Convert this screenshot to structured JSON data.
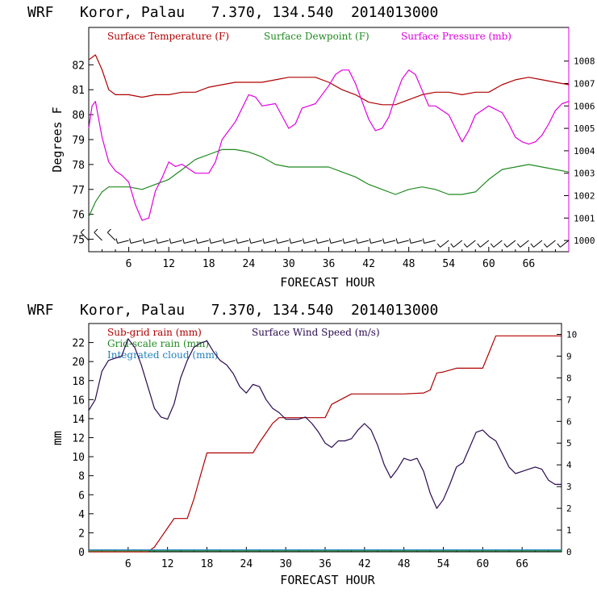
{
  "chart_data": [
    {
      "type": "line",
      "header": "WRF   Koror, Palau   7.370, 134.540  2014013000",
      "xlabel": "FORECAST HOUR",
      "ylabel": "Degrees F",
      "x_ticks": [
        "6",
        "12",
        "18",
        "24",
        "30",
        "36",
        "42",
        "48",
        "54",
        "60",
        "66"
      ],
      "xlim": [
        0,
        72
      ],
      "ylim": [
        74.5,
        83.5
      ],
      "y_ticks": [
        "75",
        "76",
        "77",
        "78",
        "79",
        "80",
        "81",
        "82"
      ],
      "ylim_right": [
        999.5,
        1009.5
      ],
      "y_ticks_right": [
        "1000",
        "1001",
        "1002",
        "1003",
        "1004",
        "1005",
        "1006",
        "1007",
        "1008"
      ],
      "colors": {
        "temperature": "#b00000",
        "dewpoint": "#1f8a1f",
        "pressure": "#e000e0",
        "wind_barbs": "#000000",
        "axes": "#000000"
      },
      "legend": [
        "Surface Temperature (F)",
        "Surface Dewpoint (F)",
        "Surface Pressure (mb)"
      ],
      "series": [
        {
          "name": "Surface Temperature (F)",
          "axis": "left",
          "x": [
            0,
            1,
            2,
            3,
            4,
            6,
            8,
            10,
            12,
            14,
            16,
            18,
            20,
            22,
            24,
            26,
            28,
            30,
            32,
            34,
            36,
            38,
            40,
            42,
            44,
            46,
            48,
            50,
            52,
            54,
            56,
            58,
            60,
            62,
            64,
            66,
            68,
            70,
            72
          ],
          "values": [
            82.2,
            82.4,
            81.8,
            81.0,
            80.8,
            80.8,
            80.7,
            80.8,
            80.8,
            80.9,
            80.9,
            81.1,
            81.2,
            81.3,
            81.3,
            81.3,
            81.4,
            81.5,
            81.5,
            81.5,
            81.3,
            81.0,
            80.8,
            80.5,
            80.4,
            80.4,
            80.6,
            80.8,
            80.9,
            80.9,
            80.8,
            80.9,
            80.9,
            81.2,
            81.4,
            81.5,
            81.4,
            81.3,
            81.2
          ]
        },
        {
          "name": "Surface Dewpoint (F)",
          "axis": "left",
          "x": [
            0,
            1,
            2,
            3,
            4,
            6,
            8,
            10,
            12,
            14,
            16,
            18,
            20,
            22,
            24,
            26,
            28,
            30,
            32,
            34,
            36,
            38,
            40,
            42,
            44,
            46,
            48,
            50,
            52,
            54,
            56,
            58,
            60,
            62,
            64,
            66,
            68,
            70,
            72
          ],
          "values": [
            75.9,
            76.5,
            76.9,
            77.1,
            77.1,
            77.1,
            77.0,
            77.2,
            77.4,
            77.8,
            78.2,
            78.4,
            78.6,
            78.6,
            78.5,
            78.3,
            78.0,
            77.9,
            77.9,
            77.9,
            77.9,
            77.7,
            77.5,
            77.2,
            77.0,
            76.8,
            77.0,
            77.1,
            77.0,
            76.8,
            76.8,
            76.9,
            77.4,
            77.8,
            77.9,
            78.0,
            77.9,
            77.8,
            77.7
          ]
        },
        {
          "name": "Surface Pressure (mb)",
          "axis": "right",
          "x": [
            0,
            0.5,
            1,
            2,
            3,
            4,
            5,
            6,
            7,
            8,
            9,
            10,
            11,
            12,
            13,
            14,
            16,
            18,
            19,
            20,
            22,
            24,
            25,
            26,
            28,
            30,
            31,
            32,
            34,
            36,
            37,
            38,
            39,
            40,
            41,
            42,
            43,
            44,
            45,
            46,
            47,
            48,
            49,
            50,
            51,
            52,
            53,
            54,
            55,
            56,
            57,
            58,
            60,
            62,
            63,
            64,
            65,
            66,
            67,
            68,
            69,
            70,
            71,
            72
          ],
          "values": [
            1005.0,
            1006.0,
            1006.2,
            1004.6,
            1003.5,
            1003.1,
            1002.9,
            1002.6,
            1001.6,
            1000.9,
            1001.0,
            1002.2,
            1002.8,
            1003.5,
            1003.3,
            1003.4,
            1003.0,
            1003.0,
            1003.5,
            1004.5,
            1005.3,
            1006.5,
            1006.4,
            1006.0,
            1006.1,
            1005.0,
            1005.2,
            1005.9,
            1006.1,
            1006.9,
            1007.4,
            1007.6,
            1007.6,
            1007.0,
            1006.2,
            1005.4,
            1004.9,
            1005.0,
            1005.5,
            1006.4,
            1007.2,
            1007.6,
            1007.4,
            1006.7,
            1006.0,
            1006.0,
            1005.8,
            1005.6,
            1005.0,
            1004.4,
            1004.9,
            1005.6,
            1006.0,
            1005.7,
            1005.2,
            1004.6,
            1004.4,
            1004.3,
            1004.4,
            1004.7,
            1005.2,
            1005.8,
            1006.1,
            1006.2
          ]
        }
      ],
      "wind_barbs": {
        "x": [
          0,
          2,
          4,
          6,
          8,
          10,
          12,
          14,
          16,
          18,
          20,
          22,
          24,
          26,
          28,
          30,
          32,
          34,
          36,
          38,
          40,
          42,
          44,
          46,
          48,
          50,
          52,
          54,
          56,
          58,
          60,
          62,
          64,
          66,
          68,
          70,
          72
        ],
        "direction": [
          "SE",
          "SE",
          "SE",
          "E",
          "E",
          "E",
          "E",
          "E",
          "E",
          "E",
          "E",
          "E",
          "E",
          "E",
          "E",
          "E",
          "E",
          "E",
          "E",
          "E",
          "E",
          "E",
          "E",
          "E",
          "E",
          "E",
          "E",
          "NE",
          "NE",
          "NE",
          "NE",
          "NE",
          "NE",
          "NE",
          "NE",
          "NE",
          "NE"
        ]
      }
    },
    {
      "type": "line",
      "header": "WRF   Koror, Palau   7.370, 134.540  2014013000",
      "xlabel": "FORECAST HOUR",
      "ylabel": "mm",
      "x_ticks": [
        "6",
        "12",
        "18",
        "24",
        "30",
        "36",
        "42",
        "48",
        "54",
        "60",
        "66"
      ],
      "xlim": [
        0,
        72
      ],
      "ylim": [
        0,
        24
      ],
      "y_ticks": [
        "0",
        "2",
        "4",
        "6",
        "8",
        "10",
        "12",
        "14",
        "16",
        "18",
        "20",
        "22"
      ],
      "ylim_right": [
        0,
        10.5
      ],
      "y_ticks_right": [
        "0",
        "1",
        "2",
        "3",
        "4",
        "5",
        "6",
        "7",
        "8",
        "9",
        "10"
      ],
      "colors": {
        "subgrid_rain": "#b00000",
        "gridscale_rain": "#1f8a1f",
        "cloud": "#1f7fbf",
        "wind_speed": "#2a0a50"
      },
      "legend": [
        "Sub-grid rain (mm)",
        "Surface Wind Speed (m/s)",
        "Grid-scale rain (mm)",
        "Integrated cloud (mm)"
      ],
      "series": [
        {
          "name": "Sub-grid rain (mm)",
          "axis": "left",
          "x": [
            0,
            9,
            10,
            11,
            12,
            13,
            15,
            16,
            17,
            18,
            20,
            22,
            24,
            25,
            26,
            27,
            28,
            29,
            30,
            31,
            32,
            33,
            34,
            35,
            36,
            37,
            40,
            42,
            45,
            48,
            51,
            52,
            53,
            54,
            56,
            58,
            60,
            61,
            62,
            64,
            66,
            68,
            70,
            72
          ],
          "values": [
            0,
            0,
            0.5,
            1.5,
            2.5,
            3.5,
            3.5,
            5.5,
            8.0,
            10.4,
            10.4,
            10.4,
            10.4,
            10.4,
            11.5,
            12.5,
            13.5,
            14.1,
            14.1,
            14.1,
            14.1,
            14.1,
            14.1,
            14.1,
            14.1,
            15.5,
            16.6,
            16.6,
            16.6,
            16.6,
            16.7,
            17.0,
            18.8,
            18.9,
            19.3,
            19.3,
            19.3,
            21.0,
            22.7,
            22.7,
            22.7,
            22.7,
            22.7,
            22.7
          ]
        },
        {
          "name": "Grid-scale rain (mm)",
          "axis": "left",
          "x": [
            0,
            12,
            24,
            36,
            48,
            60,
            72
          ],
          "values": [
            0.1,
            0.1,
            0.1,
            0.1,
            0.1,
            0.1,
            0.1
          ]
        },
        {
          "name": "Integrated cloud (mm)",
          "axis": "left",
          "x": [
            0,
            12,
            24,
            36,
            48,
            60,
            72
          ],
          "values": [
            0.2,
            0.2,
            0.2,
            0.2,
            0.2,
            0.2,
            0.2
          ]
        },
        {
          "name": "Surface Wind Speed (m/s)",
          "axis": "right",
          "x": [
            0,
            1,
            2,
            3,
            4,
            5,
            6,
            7,
            8,
            9,
            10,
            11,
            12,
            13,
            14,
            15,
            16,
            17,
            18,
            19,
            20,
            21,
            22,
            23,
            24,
            25,
            26,
            27,
            28,
            29,
            30,
            31,
            32,
            33,
            34,
            35,
            36,
            37,
            38,
            39,
            40,
            41,
            42,
            43,
            44,
            45,
            46,
            47,
            48,
            49,
            50,
            51,
            52,
            53,
            54,
            55,
            56,
            57,
            58,
            59,
            60,
            61,
            62,
            63,
            64,
            65,
            66,
            67,
            68,
            69,
            70,
            71,
            72
          ],
          "values": [
            6.5,
            7.0,
            8.3,
            8.8,
            8.9,
            9.0,
            9.8,
            9.4,
            8.6,
            7.6,
            6.6,
            6.2,
            6.1,
            6.8,
            8.0,
            8.8,
            9.4,
            9.6,
            9.7,
            9.2,
            8.8,
            8.6,
            8.2,
            7.6,
            7.3,
            7.7,
            7.6,
            7.0,
            6.6,
            6.4,
            6.1,
            6.1,
            6.1,
            6.2,
            5.9,
            5.5,
            5.0,
            4.8,
            5.1,
            5.1,
            5.2,
            5.6,
            5.9,
            5.6,
            4.9,
            4.0,
            3.4,
            3.8,
            4.3,
            4.2,
            4.3,
            3.7,
            2.7,
            2.0,
            2.4,
            3.1,
            3.9,
            4.1,
            4.8,
            5.5,
            5.6,
            5.3,
            5.1,
            4.5,
            3.9,
            3.6,
            3.7,
            3.8,
            3.9,
            3.8,
            3.3,
            3.1,
            3.1
          ]
        }
      ]
    }
  ]
}
